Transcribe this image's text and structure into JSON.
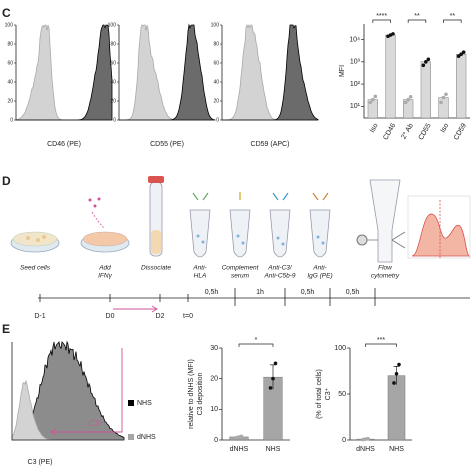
{
  "panels": {
    "C": {
      "label": "C",
      "histograms": [
        {
          "xlabel": "CD46 (PE)"
        },
        {
          "xlabel": "CD55 (PE)"
        },
        {
          "xlabel": "CD59 (APC)"
        }
      ],
      "yticks": [
        0,
        20,
        40,
        60,
        80,
        100
      ],
      "mfi": {
        "type": "bar",
        "log": true,
        "ylabel": "MFI",
        "categories": [
          "Iso",
          "CD46",
          "2° Ab",
          "CD55",
          "Iso",
          "CD59"
        ],
        "values": [
          20,
          16000,
          20,
          1000,
          25,
          2200
        ],
        "points": [
          [
            15,
            20,
            28
          ],
          [
            14000,
            16000,
            18000
          ],
          [
            15,
            20,
            27
          ],
          [
            700,
            1000,
            1300
          ],
          [
            15,
            25,
            35
          ],
          [
            1800,
            2200,
            2700
          ]
        ],
        "point_colors": [
          "#aaaaaa",
          "#111111",
          "#aaaaaa",
          "#111111",
          "#aaaaaa",
          "#111111"
        ],
        "color": "#d9d9d9",
        "ylim": [
          3,
          50000
        ],
        "yticks": [
          {
            "value": 10,
            "label": "10¹"
          },
          {
            "value": 100,
            "label": "10²"
          },
          {
            "value": 1000,
            "label": "10³"
          },
          {
            "value": 10000,
            "label": "10⁴"
          }
        ],
        "significance": [
          "****",
          "**",
          "**"
        ]
      }
    },
    "D": {
      "label": "D",
      "steps": [
        [
          "Seed cells"
        ],
        [
          "Add",
          "IFNγ"
        ],
        [
          "Dissociate"
        ],
        [
          "Anti-",
          "HLA"
        ],
        [
          "Complement",
          "serum"
        ],
        [
          "Anti-C3/",
          "Anti-C5b-9"
        ],
        [
          "Anti-",
          "IgG (PE)"
        ],
        [
          "Flow",
          "cytometry"
        ]
      ],
      "timeline": {
        "days": [
          "D-1",
          "D0",
          "D2",
          "t=0"
        ],
        "intervals": [
          "0,5h",
          "1h",
          "0,5h",
          "0,5h"
        ]
      }
    },
    "E": {
      "label": "E",
      "histogram": {
        "xlabel": "C3 (PE)",
        "gate": "C3⁺",
        "legend": [
          "NHS",
          "dNHS"
        ]
      },
      "charts": [
        {
          "type": "bar",
          "ylabel": [
            "C3 deposition",
            "relative to dNHS (MFI)"
          ],
          "categories": [
            "dNHS",
            "NHS"
          ],
          "values": [
            1,
            20.5
          ],
          "errors": [
            0.2,
            4
          ],
          "points": [
            [
              0.8,
              1,
              1.2
            ],
            [
              17,
              20,
              25
            ]
          ],
          "point_colors": [
            "#aaaaaa",
            "#111111"
          ],
          "color": "#a6a6a6",
          "ylim": [
            0,
            30
          ],
          "yticks": [
            0,
            10,
            20,
            30
          ],
          "significance": [
            "*"
          ]
        },
        {
          "type": "bar",
          "ylabel": [
            "C3⁺",
            "(% of total cells)"
          ],
          "categories": [
            "dNHS",
            "NHS"
          ],
          "values": [
            1,
            70
          ],
          "errors": [
            0.5,
            10
          ],
          "points": [
            [
              0.5,
              1,
              1.5
            ],
            [
              62,
              72,
              82
            ]
          ],
          "point_colors": [
            "#aaaaaa",
            "#111111"
          ],
          "color": "#a6a6a6",
          "ylim": [
            0,
            100
          ],
          "yticks": [
            0,
            50,
            100
          ],
          "significance": [
            "***"
          ]
        }
      ]
    }
  }
}
